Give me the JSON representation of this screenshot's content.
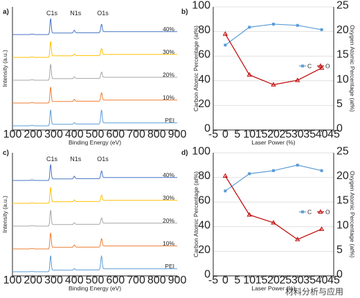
{
  "chart_data": [
    {
      "panel": "a)",
      "type": "line",
      "xlabel": "Binding Energy (eV)",
      "ylabel": "Intensity (a.u.)",
      "xlim": [
        100,
        900
      ],
      "xticks": [
        100,
        200,
        300,
        400,
        500,
        600,
        700,
        800,
        900
      ],
      "peaks": [
        {
          "label": "C1s",
          "x": 285
        },
        {
          "label": "N1s",
          "x": 400
        },
        {
          "label": "O1s",
          "x": 532
        }
      ],
      "series": [
        {
          "name": "40%",
          "color": "#4472c4",
          "peak_heights": {
            "C1s": 1.0,
            "N1s": 0.18,
            "O1s": 0.55
          }
        },
        {
          "name": "30%",
          "color": "#ffc000",
          "peak_heights": {
            "C1s": 1.0,
            "N1s": 0.12,
            "O1s": 0.45
          }
        },
        {
          "name": "20%",
          "color": "#a5a5a5",
          "peak_heights": {
            "C1s": 1.0,
            "N1s": 0.12,
            "O1s": 0.4
          }
        },
        {
          "name": "10%",
          "color": "#ed7d31",
          "peak_heights": {
            "C1s": 1.0,
            "N1s": 0.14,
            "O1s": 0.55
          }
        },
        {
          "name": "PEI",
          "color": "#5b9bd5",
          "peak_heights": {
            "C1s": 1.0,
            "N1s": 0.1,
            "O1s": 0.9
          }
        }
      ]
    },
    {
      "panel": "b)",
      "type": "line",
      "xlabel": "Laser Power (%)",
      "ylabel": "Carbon Atomic Percentage (at%)",
      "y2label": "Oxygen Atomic Percentage (at%)",
      "xlim": [
        -5,
        45
      ],
      "xticks": [
        -5,
        0,
        5,
        10,
        15,
        20,
        25,
        30,
        35,
        40,
        45
      ],
      "ylim": [
        0,
        100
      ],
      "yticks": [
        0,
        20,
        40,
        60,
        80,
        100
      ],
      "y2lim": [
        0,
        25
      ],
      "y2ticks": [
        0,
        5,
        10,
        15,
        20,
        25
      ],
      "grid": true,
      "legend": "right",
      "x": [
        0,
        10,
        20,
        30,
        40
      ],
      "series": [
        {
          "name": "C",
          "axis": "left",
          "color": "#5b9bd5",
          "marker": "square",
          "values": [
            69,
            83.5,
            86,
            85,
            81.5
          ]
        },
        {
          "name": "O",
          "axis": "right",
          "color": "#c00000",
          "marker": "triangle",
          "values": [
            19.5,
            11.2,
            9.2,
            10.1,
            12.6
          ]
        }
      ]
    },
    {
      "panel": "c)",
      "type": "line",
      "xlabel": "Binding Energy (eV)",
      "ylabel": "Intensity (a.u.)",
      "xlim": [
        100,
        900
      ],
      "xticks": [
        100,
        200,
        300,
        400,
        500,
        600,
        700,
        800,
        900
      ],
      "peaks": [
        {
          "label": "C1s",
          "x": 285
        },
        {
          "label": "N1s",
          "x": 400
        },
        {
          "label": "O1s",
          "x": 532
        }
      ],
      "series": [
        {
          "name": "40%",
          "color": "#4472c4",
          "peak_heights": {
            "C1s": 1.0,
            "N1s": 0.18,
            "O1s": 0.5
          }
        },
        {
          "name": "30%",
          "color": "#ffc000",
          "peak_heights": {
            "C1s": 1.0,
            "N1s": 0.12,
            "O1s": 0.4
          }
        },
        {
          "name": "20%",
          "color": "#a5a5a5",
          "peak_heights": {
            "C1s": 1.0,
            "N1s": 0.12,
            "O1s": 0.4
          }
        },
        {
          "name": "10%",
          "color": "#ed7d31",
          "peak_heights": {
            "C1s": 1.0,
            "N1s": 0.16,
            "O1s": 0.55
          }
        },
        {
          "name": "PEI",
          "color": "#5b9bd5",
          "peak_heights": {
            "C1s": 1.0,
            "N1s": 0.1,
            "O1s": 0.9
          }
        }
      ]
    },
    {
      "panel": "d)",
      "type": "line",
      "xlabel": "Laser Power (%)",
      "ylabel": "Carbon Atomic Percentage (at%)",
      "y2label": "Oxygen Atomic Percentage (at%)",
      "xlim": [
        -5,
        45
      ],
      "xticks": [
        -5,
        0,
        5,
        10,
        15,
        20,
        25,
        30,
        35,
        40,
        45
      ],
      "ylim": [
        0,
        100
      ],
      "yticks": [
        0,
        20,
        40,
        60,
        80,
        100
      ],
      "y2lim": [
        0,
        25
      ],
      "y2ticks": [
        0,
        5,
        10,
        15,
        20,
        25
      ],
      "grid": true,
      "legend": "right",
      "x": [
        0,
        10,
        20,
        30,
        40
      ],
      "series": [
        {
          "name": "C",
          "axis": "left",
          "color": "#5b9bd5",
          "marker": "square",
          "values": [
            69,
            83,
            85.5,
            90,
            85.5
          ]
        },
        {
          "name": "O",
          "axis": "right",
          "color": "#c00000",
          "marker": "triangle",
          "values": [
            20.3,
            12.4,
            10.8,
            7.4,
            9.5
          ]
        }
      ]
    }
  ],
  "watermark": "材料分析与应用"
}
